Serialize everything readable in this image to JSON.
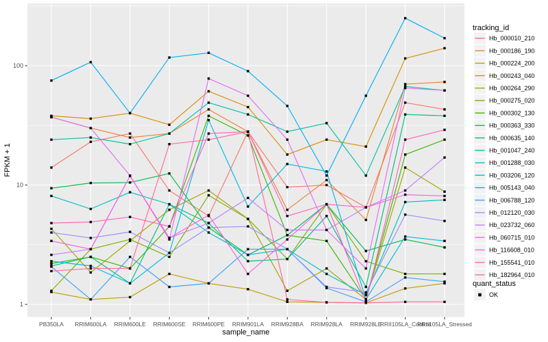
{
  "figure": {
    "background": "#FFFFFF",
    "panel_bg": "#EBEBEB",
    "grid_color": "#FFFFFF",
    "tick_color": "#333333",
    "tick_label_color": "#4D4D4D",
    "axis_title_color": "#000000",
    "point_color": "#000000",
    "legend_key_bg": "#F2F2F2"
  },
  "chart_data": {
    "type": "line",
    "title": "",
    "xlabel": "sample_name",
    "ylabel": "FPKM + 1",
    "yscale": "log10",
    "ylim": [
      1,
      316
    ],
    "grid": true,
    "legend_position": "right",
    "y_major_ticks": [
      1,
      10,
      100
    ],
    "y_tick_labels": [
      "1",
      "10",
      "100"
    ],
    "y_minor_ticks": [
      3.1623,
      31.623,
      316.23
    ],
    "categories": [
      "PB350LA",
      "RRIM600LA",
      "RRIM600LE",
      "RRIM600SE",
      "RRIM600PE",
      "RRIM901LA",
      "RRIM928BA",
      "RRIM928LA",
      "RRIM928LE",
      "RRII105LA_Control",
      "RRII105LA_Stressed"
    ],
    "series": [
      {
        "name": "Hb_000010_210",
        "color": "#F8766D",
        "values": [
          14,
          23,
          27,
          9,
          5.5,
          28,
          9.6,
          10,
          6.5,
          49,
          43
        ]
      },
      {
        "name": "Hb_000186_190",
        "color": "#EA8331",
        "values": [
          37,
          30,
          25,
          27,
          43,
          28,
          6.2,
          11,
          5.1,
          70,
          73
        ]
      },
      {
        "name": "Hb_000224_200",
        "color": "#D89000",
        "values": [
          38,
          36,
          40,
          32,
          61,
          45,
          18,
          24,
          21,
          115,
          140
        ]
      },
      {
        "name": "Hb_000243_040",
        "color": "#C09B00",
        "values": [
          1.27,
          1.1,
          1.15,
          1.8,
          1.5,
          1.34,
          1.05,
          1.04,
          1.03,
          1.36,
          1.5
        ]
      },
      {
        "name": "Hb_000264_290",
        "color": "#A3A500",
        "values": [
          4.3,
          1.85,
          3.4,
          6.2,
          9,
          5.2,
          1.3,
          2,
          1.1,
          14,
          8.8
        ]
      },
      {
        "name": "Hb_000275_020",
        "color": "#7CAE00",
        "values": [
          1.3,
          2.9,
          3.5,
          2.5,
          8.2,
          5.2,
          2.4,
          6.9,
          2.3,
          1.8,
          1.8
        ]
      },
      {
        "name": "Hb_000302_130",
        "color": "#39B600",
        "values": [
          2.2,
          2.5,
          2,
          4.5,
          38,
          26,
          3.8,
          3.4,
          1.1,
          18,
          24
        ]
      },
      {
        "name": "Hb_000363_330",
        "color": "#00BB4E",
        "values": [
          9.4,
          10.4,
          10.5,
          12.5,
          4.4,
          2.6,
          3.8,
          6.9,
          2.8,
          3.5,
          3
        ]
      },
      {
        "name": "Hb_000635_140",
        "color": "#00BF7D",
        "values": [
          2.1,
          2.5,
          1.5,
          6.9,
          4.8,
          2.3,
          2.4,
          5.5,
          1.4,
          39,
          38
        ]
      },
      {
        "name": "Hb_001047_240",
        "color": "#00C1A3",
        "values": [
          24,
          25,
          22,
          27,
          49,
          39,
          28,
          33,
          12,
          67,
          62
        ]
      },
      {
        "name": "Hb_001288_030",
        "color": "#00BFC4",
        "values": [
          8.1,
          6.3,
          8.7,
          6.9,
          4,
          2.6,
          2.9,
          1.8,
          1.2,
          7.2,
          7.5
        ]
      },
      {
        "name": "Hb_003206_120",
        "color": "#00BAE0",
        "values": [
          2.3,
          2.1,
          1.5,
          2.7,
          35,
          6.6,
          15,
          13,
          1.1,
          3.7,
          3.4
        ]
      },
      {
        "name": "Hb_005143_040",
        "color": "#00B0F6",
        "values": [
          75,
          107,
          40,
          117,
          128,
          90,
          46,
          12,
          56,
          250,
          170
        ]
      },
      {
        "name": "Hb_006788_120",
        "color": "#35A2FF",
        "values": [
          2.07,
          1.1,
          2.5,
          1.4,
          1.5,
          2.9,
          2.9,
          1.37,
          1.05,
          1.68,
          1.55
        ]
      },
      {
        "name": "Hb_012120_030",
        "color": "#9590FF",
        "values": [
          4,
          3.6,
          4.05,
          2.7,
          4.4,
          4.5,
          2.9,
          1.4,
          1.26,
          5.65,
          5
        ]
      },
      {
        "name": "Hb_023732_060",
        "color": "#C77CFF",
        "values": [
          2.6,
          2.9,
          11.9,
          3.6,
          4.8,
          7.8,
          4.2,
          4.2,
          6.5,
          9,
          17
        ]
      },
      {
        "name": "Hb_060715_010",
        "color": "#E76BF3",
        "values": [
          37,
          30,
          12,
          3.5,
          78,
          56,
          24,
          4.2,
          2,
          65,
          62
        ]
      },
      {
        "name": "Hb_116608_010",
        "color": "#FA62DB",
        "values": [
          3.4,
          2.9,
          11.9,
          3.6,
          5.6,
          1.8,
          3.5,
          6.9,
          6.5,
          8.3,
          8.1
        ]
      },
      {
        "name": "Hb_155541_010",
        "color": "#FF62BC",
        "values": [
          4.8,
          4.9,
          5.4,
          4.5,
          27,
          28,
          5.5,
          6.9,
          1.05,
          24,
          29
        ]
      },
      {
        "name": "Hb_182964_010",
        "color": "#FF6A98",
        "values": [
          1.9,
          2,
          2,
          22,
          24,
          28,
          1.1,
          1.04,
          1.03,
          1.05,
          1.05
        ]
      }
    ],
    "legend": {
      "color_legend_title": "tracking_id",
      "shape_legend_title": "quant_status",
      "shape_legend_items": [
        {
          "label": "OK",
          "marker": "filled-square"
        }
      ]
    }
  }
}
